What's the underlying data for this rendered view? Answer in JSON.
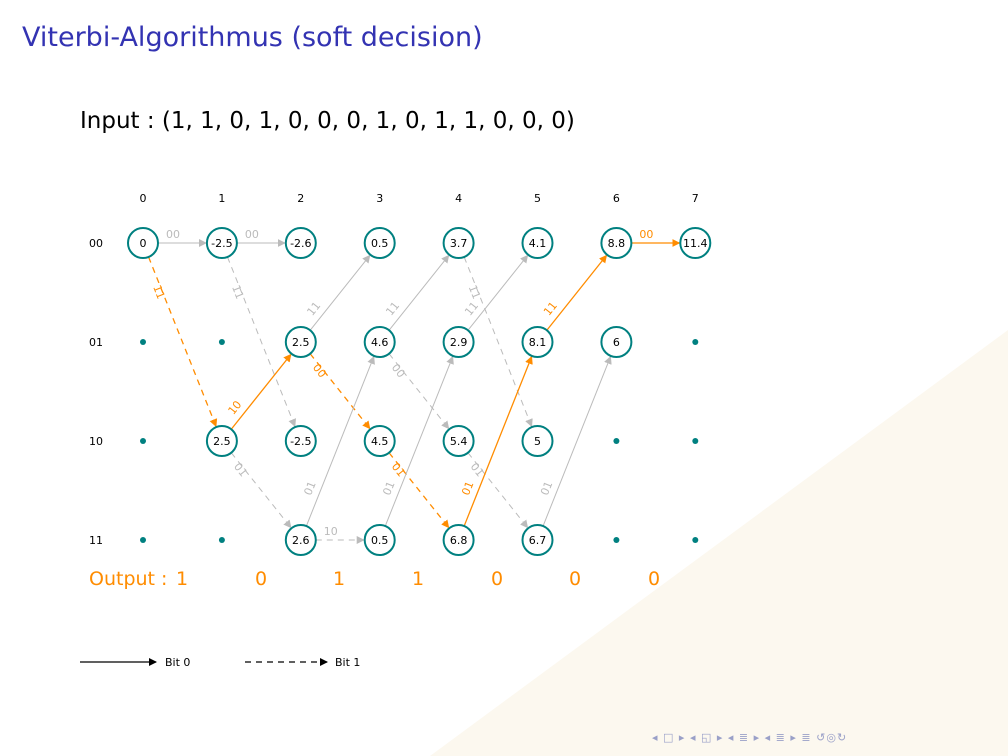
{
  "title": "Viterbi-Algorithmus (soft decision)",
  "input_label": "Input : (1, 1, 0, 1, 0, 0, 0, 1, 0, 1, 1, 0, 0, 0)",
  "colors": {
    "teal": "#008080",
    "orange": "#ff8c00",
    "gray": "#bbbbbb",
    "title": "#3333b2"
  },
  "trellis": {
    "time_labels": [
      "0",
      "1",
      "2",
      "3",
      "4",
      "5",
      "6",
      "7"
    ],
    "state_labels": [
      "00",
      "01",
      "10",
      "11"
    ],
    "metrics": [
      [
        "0",
        "-2.5",
        "-2.6",
        "0.5",
        "3.7",
        "4.1",
        "8.8",
        "11.4"
      ],
      [
        null,
        null,
        "2.5",
        "4.6",
        "2.9",
        "8.1",
        "6",
        null
      ],
      [
        null,
        "2.5",
        "-2.5",
        "4.5",
        "5.4",
        "5",
        null,
        null
      ],
      [
        null,
        null,
        "2.6",
        "0.5",
        "6.8",
        "6.7",
        null,
        null
      ]
    ],
    "edges": [
      {
        "from": [
          0,
          0
        ],
        "to": [
          1,
          0
        ],
        "label": "00",
        "dashed": false,
        "highlight": false
      },
      {
        "from": [
          0,
          0
        ],
        "to": [
          1,
          2
        ],
        "label": "11",
        "dashed": true,
        "highlight": true
      },
      {
        "from": [
          1,
          0
        ],
        "to": [
          2,
          0
        ],
        "label": "00",
        "dashed": false,
        "highlight": false
      },
      {
        "from": [
          1,
          0
        ],
        "to": [
          2,
          2
        ],
        "label": "11",
        "dashed": true,
        "highlight": false
      },
      {
        "from": [
          1,
          2
        ],
        "to": [
          2,
          1
        ],
        "label": "10",
        "dashed": false,
        "highlight": true
      },
      {
        "from": [
          1,
          2
        ],
        "to": [
          2,
          3
        ],
        "label": "01",
        "dashed": true,
        "highlight": false
      },
      {
        "from": [
          2,
          1
        ],
        "to": [
          3,
          0
        ],
        "label": "11",
        "dashed": false,
        "highlight": false
      },
      {
        "from": [
          2,
          1
        ],
        "to": [
          3,
          2
        ],
        "label": "00",
        "dashed": true,
        "highlight": true
      },
      {
        "from": [
          2,
          3
        ],
        "to": [
          3,
          1
        ],
        "label": "01",
        "dashed": false,
        "highlight": false
      },
      {
        "from": [
          2,
          3
        ],
        "to": [
          3,
          3
        ],
        "label": "10",
        "dashed": true,
        "highlight": false
      },
      {
        "from": [
          3,
          1
        ],
        "to": [
          4,
          0
        ],
        "label": "11",
        "dashed": false,
        "highlight": false
      },
      {
        "from": [
          3,
          1
        ],
        "to": [
          4,
          2
        ],
        "label": "00",
        "dashed": true,
        "highlight": false
      },
      {
        "from": [
          3,
          2
        ],
        "to": [
          4,
          3
        ],
        "label": "01",
        "dashed": true,
        "highlight": true
      },
      {
        "from": [
          3,
          3
        ],
        "to": [
          4,
          1
        ],
        "label": "01",
        "dashed": false,
        "highlight": false
      },
      {
        "from": [
          4,
          0
        ],
        "to": [
          5,
          2
        ],
        "label": "11",
        "dashed": true,
        "highlight": false
      },
      {
        "from": [
          4,
          1
        ],
        "to": [
          5,
          0
        ],
        "label": "11",
        "dashed": false,
        "highlight": false
      },
      {
        "from": [
          4,
          2
        ],
        "to": [
          5,
          3
        ],
        "label": "01",
        "dashed": true,
        "highlight": false
      },
      {
        "from": [
          4,
          3
        ],
        "to": [
          5,
          1
        ],
        "label": "01",
        "dashed": false,
        "highlight": true
      },
      {
        "from": [
          5,
          1
        ],
        "to": [
          6,
          0
        ],
        "label": "11",
        "dashed": false,
        "highlight": true
      },
      {
        "from": [
          5,
          3
        ],
        "to": [
          6,
          1
        ],
        "label": "01",
        "dashed": false,
        "highlight": false
      },
      {
        "from": [
          6,
          0
        ],
        "to": [
          7,
          0
        ],
        "label": "00",
        "dashed": false,
        "highlight": true
      }
    ]
  },
  "output": {
    "label": "Output :",
    "bits": [
      "1",
      "0",
      "1",
      "1",
      "0",
      "0",
      "0"
    ]
  },
  "legend": {
    "solid_label": "Bit 0",
    "dashed_label": "Bit 1"
  },
  "nav_icons": [
    "nav-first-icon",
    "nav-frame-icon",
    "nav-subsection-icon",
    "nav-section-icon",
    "nav-align-icon",
    "nav-search-icon"
  ]
}
